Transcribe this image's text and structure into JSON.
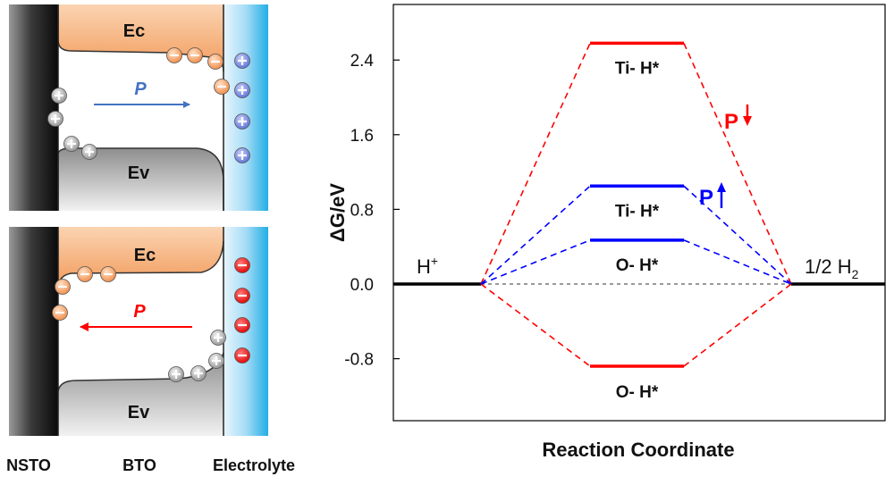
{
  "band_diagram": {
    "layer_labels": {
      "left": "NSTO",
      "middle": "BTO",
      "right": "Electrolyte"
    },
    "top_panel": {
      "conduction_band": "Ec",
      "valence_band": "Ev",
      "polarization": "P",
      "polarization_direction": "right",
      "interface_charge": "negative",
      "electrolyte_charge": "positive"
    },
    "bottom_panel": {
      "conduction_band": "Ec",
      "valence_band": "Ev",
      "polarization": "P",
      "polarization_direction": "left",
      "interface_charge": "positive",
      "electrolyte_charge": "negative"
    },
    "colors": {
      "band_orange": "#f4a46a",
      "electrolyte_blue": "#36b6ea",
      "arrow_blue": "#4472c4",
      "arrow_red": "#ff0000"
    }
  },
  "chart_data": {
    "type": "line",
    "xlabel": "Reaction Coordinate",
    "ylabel": "ΔG/eV",
    "ylim": [
      -1.2,
      2.8
    ],
    "yticks": [
      {
        "value": 2.4,
        "label": "2.4"
      },
      {
        "value": 1.6,
        "label": "1.6"
      },
      {
        "value": 0.8,
        "label": "0.8"
      },
      {
        "value": 0.0,
        "label": "0.0"
      },
      {
        "value": -0.8,
        "label": "-0.8"
      }
    ],
    "states": {
      "initial": {
        "label": "H",
        "sup": "+",
        "energy": 0.0
      },
      "final": {
        "label": "1/2 H",
        "sub": "2",
        "energy": 0.0
      }
    },
    "series": [
      {
        "polarization": "down",
        "color": "#ff0000",
        "levels": [
          {
            "label": "Ti- H*",
            "energy": 2.58
          },
          {
            "label": "O- H*",
            "energy": -0.88
          }
        ]
      },
      {
        "polarization": "up",
        "color": "#0000ff",
        "levels": [
          {
            "label": "Ti- H*",
            "energy": 1.05
          },
          {
            "label": "O- H*",
            "energy": 0.47
          }
        ]
      }
    ],
    "polarization_labels": [
      {
        "text": "P",
        "direction": "down",
        "color": "#ff0000"
      },
      {
        "text": "P",
        "direction": "up",
        "color": "#0000ff"
      }
    ]
  }
}
